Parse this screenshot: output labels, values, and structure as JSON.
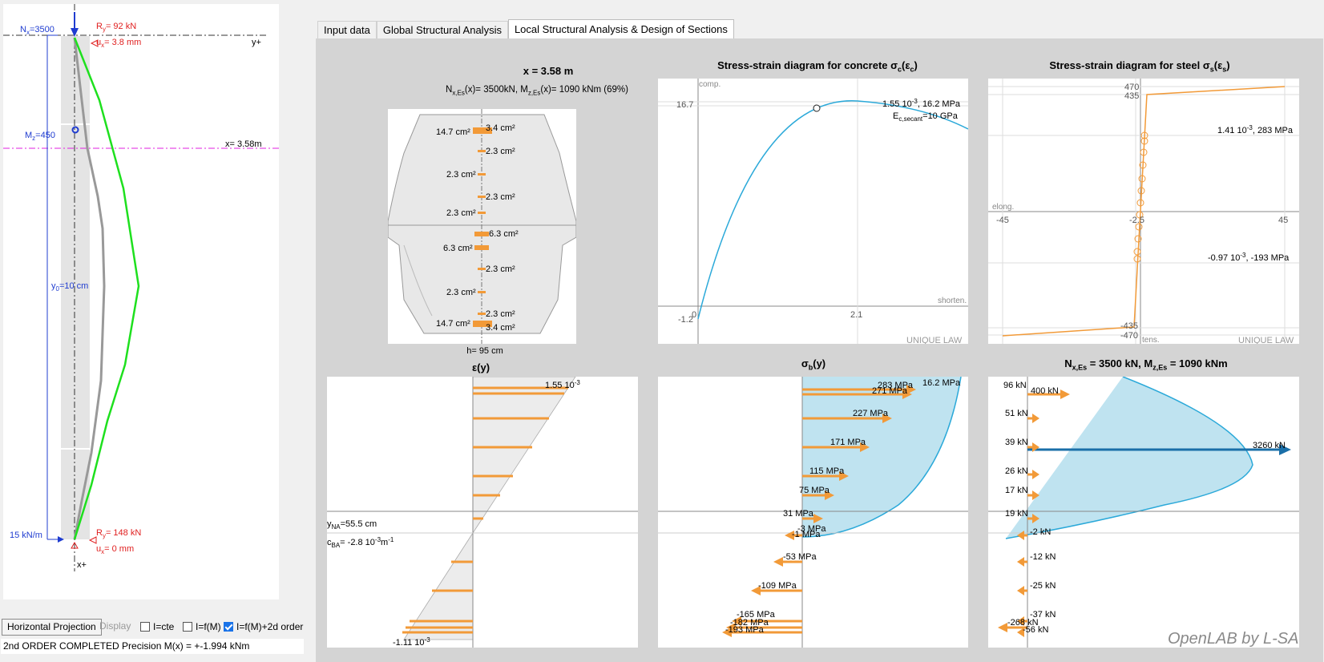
{
  "tabs": [
    {
      "label": "Input data",
      "active": false
    },
    {
      "label": "Global Structural Analysis",
      "active": false
    },
    {
      "label": "Local Structural Analysis & Design of Sections",
      "active": true
    }
  ],
  "left_panel": {
    "nx_label": "N",
    "nx_sub": "x",
    "nx_value": "=3500",
    "ry_top_label": "R",
    "ry_top_sub": "y",
    "ry_top_value": "= 92 kN",
    "ux_top_label": "u",
    "ux_top_sub": "x",
    "ux_top_value": "= 3.8 mm",
    "y_plus": "y+",
    "mz_label": "M",
    "mz_sub": "z",
    "mz_value": "=450",
    "x_marker": "x= 3.58m",
    "y0_label": "y",
    "y0_sub": "0",
    "y0_value": "=10 cm",
    "load_label": "15 kN/m",
    "ry_bot_label": "R",
    "ry_bot_sub": "y",
    "ry_bot_value": "= 148 kN",
    "ux_bot_label": "u",
    "ux_bot_sub": "x",
    "ux_bot_value": "= 0 mm",
    "x_plus": "x+"
  },
  "bottom": {
    "projection_button": "Horizontal Projection",
    "display_label": "Display",
    "cb1": {
      "label": "I=cte",
      "checked": false
    },
    "cb2": {
      "label": "I=f(M)",
      "checked": false
    },
    "cb3": {
      "label": "I=f(M)+2d order",
      "checked": true
    },
    "status": "2nd ORDER COMPLETED  Precision M(x) = +-1.994 kNm"
  },
  "section": {
    "title": "x = 3.58 m",
    "subtitle": "N",
    "sub_nx": "x,Es",
    "subtitle2": "(x)= 3500kN, M",
    "sub_mz": "z,Es",
    "subtitle3": "(x)= 1090 kNm (69%)",
    "height_label": "h= 95 cm",
    "rebars": [
      "14.7 cm²",
      "3.4 cm²",
      "2.3 cm²",
      "2.3 cm²",
      "2.3 cm²",
      "2.3 cm²",
      "6.3 cm²",
      "6.3 cm²",
      "2.3 cm²",
      "2.3 cm²",
      "2.3 cm²",
      "14.7 cm²",
      "3.4 cm²"
    ]
  },
  "concrete": {
    "title": "Stress-strain diagram for concrete σ",
    "title_sub": "c",
    "title_arg": "(ε",
    "title_arg_sub": "c",
    "title_end": ")",
    "comp": "comp.",
    "fc": "16.7",
    "peak_label": "1.55 10",
    "peak_exp": "-3",
    "peak_value": ", 16.2 MPa",
    "ec_label": "E",
    "ec_sub": "c,secant",
    "ec_value": "=10 GPa",
    "shorten": "shorten.",
    "tick_zero": "0",
    "tick_21": "2.1",
    "tick_neg": "-1.2",
    "law": "UNIQUE LAW"
  },
  "steel": {
    "title": "Stress-strain diagram for steel σ",
    "title_sub": "s",
    "title_arg": "(ε",
    "title_arg_sub": "s",
    "title_end": ")",
    "t470": "470",
    "t435": "435",
    "tm435": "-435",
    "tm470": "-470",
    "top_point": "1.41 10",
    "top_exp": "-3",
    "top_value": ", 283 MPa",
    "bot_point": "-0.97 10",
    "bot_exp": "-3",
    "bot_value": ", -193 MPa",
    "elong": "elong.",
    "tens": "tens.",
    "xm45": "-45",
    "xm25": "-2.5",
    "x45": "45",
    "law": "UNIQUE LAW"
  },
  "strain": {
    "title": "ε(y)",
    "top": "1.55 10",
    "top_exp": "-3",
    "yna": "y",
    "yna_sub": "NA",
    "yna_value": "=55.5 cm",
    "cba": "c",
    "cba_sub": "BA",
    "cba_value": "= -2.8 10",
    "cba_exp": "-3",
    "cba_unit": "m",
    "cba_unit_exp": "-1",
    "bottom": "-1.11 10",
    "bottom_exp": "-3"
  },
  "stress": {
    "title": "σ",
    "title_sub": "b",
    "title_end": "(y)",
    "peak": "16.2 MPa",
    "labels": [
      "283 MPa",
      "271 MPa",
      "227 MPa",
      "171 MPa",
      "115 MPa",
      "75 MPa",
      "31 MPa",
      "-3 MPa",
      "-1 MPa",
      "-53 MPa",
      "-109 MPa",
      "-165 MPa",
      "-182 MPa",
      "-193 MPa"
    ]
  },
  "forces": {
    "title": "N",
    "title_sub1": "x,Es",
    "title_mid": " = 3500 kN, M",
    "title_sub2": "z,Es",
    "title_end": " = 1090 kNm",
    "left_labels": [
      "96 kN",
      "51 kN",
      "39 kN",
      "26 kN",
      "17 kN",
      "19 kN",
      "-2 kN",
      "-12 kN",
      "-25 kN",
      "-37 kN",
      "-268 kN",
      "-56 kN"
    ],
    "f400": "400 kN",
    "resultant": "3260 kN"
  },
  "watermark": "OpenLAB by L-SA"
}
